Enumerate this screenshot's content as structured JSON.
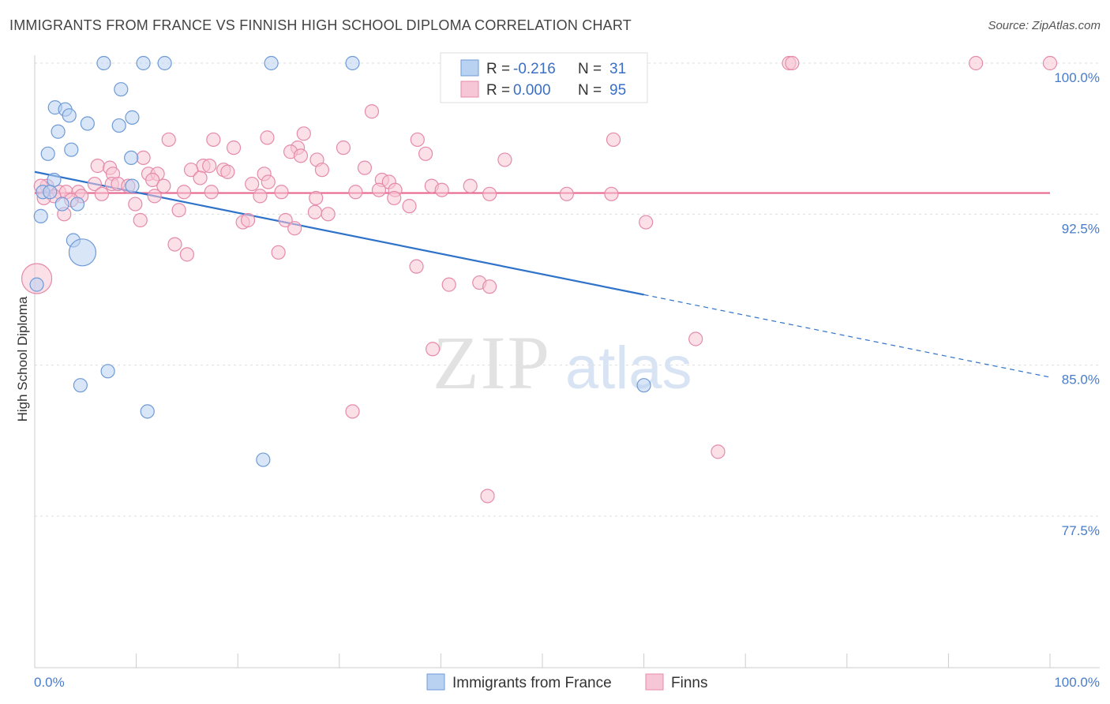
{
  "title": "IMMIGRANTS FROM FRANCE VS FINNISH HIGH SCHOOL DIPLOMA CORRELATION CHART",
  "source": "Source: ZipAtlas.com",
  "watermark": {
    "zip": "ZIP",
    "atlas": "atlas"
  },
  "colors": {
    "blue_fill": "#b9d2f2",
    "blue_stroke": "#6f9ad6",
    "blue_line": "#2f72c9",
    "pink_fill": "#f7c6d6",
    "pink_stroke": "#e58aaa",
    "pink_line": "#e8678f",
    "tick_text": "#4a7cc9",
    "grid": "#dddddd"
  },
  "legend_top": {
    "r_label": "R =",
    "n_label": "N =",
    "blue": {
      "r": "-0.216",
      "n": "31"
    },
    "pink": {
      "r": "0.000",
      "n": "95"
    }
  },
  "chart_data": {
    "type": "scatter",
    "title": "IMMIGRANTS FROM FRANCE VS FINNISH HIGH SCHOOL DIPLOMA CORRELATION CHART",
    "xlabel": "Immigrants from France",
    "ylabel": "High School Diploma",
    "xlim": [
      0,
      100
    ],
    "ylim": [
      70.0,
      100.8
    ],
    "yticks": [
      {
        "value": 100.0,
        "label": "100.0%"
      },
      {
        "value": 92.5,
        "label": "92.5%"
      },
      {
        "value": 85.0,
        "label": "85.0%"
      },
      {
        "value": 77.5,
        "label": "77.5%"
      }
    ],
    "xtick_labels": {
      "left": "0.0%",
      "right": "100.0%"
    },
    "series": [
      {
        "name": "Immigrants from France",
        "color": "blue",
        "r": -0.216,
        "n": 31,
        "trend": {
          "x0": 0.0,
          "y0": 94.6,
          "x1": 60.0,
          "y1": 88.5,
          "dash_to_x": 100.0,
          "dash_to_y": 84.4
        },
        "points": [
          [
            6.8,
            100.0
          ],
          [
            10.7,
            100.0
          ],
          [
            12.8,
            100.0
          ],
          [
            23.3,
            100.0
          ],
          [
            31.3,
            100.0
          ],
          [
            8.5,
            98.7
          ],
          [
            2.0,
            97.8
          ],
          [
            3.0,
            97.7
          ],
          [
            3.4,
            97.4
          ],
          [
            9.6,
            97.3
          ],
          [
            5.2,
            97.0
          ],
          [
            8.3,
            96.9
          ],
          [
            2.3,
            96.6
          ],
          [
            1.3,
            95.5
          ],
          [
            3.6,
            95.7
          ],
          [
            9.5,
            95.3
          ],
          [
            1.9,
            94.2
          ],
          [
            9.6,
            93.9
          ],
          [
            0.8,
            93.6
          ],
          [
            1.5,
            93.6
          ],
          [
            2.7,
            93.0
          ],
          [
            4.2,
            93.0
          ],
          [
            0.6,
            92.4
          ],
          [
            3.8,
            91.2
          ],
          [
            4.7,
            90.6
          ],
          [
            0.2,
            89.0
          ],
          [
            7.2,
            84.7
          ],
          [
            4.5,
            84.0
          ],
          [
            60.0,
            84.0
          ],
          [
            11.1,
            82.7
          ],
          [
            22.5,
            80.3
          ]
        ],
        "sizes": {
          "24": 34
        }
      },
      {
        "name": "Finns",
        "color": "pink",
        "r": 0.0,
        "n": 95,
        "trend": {
          "y": 93.55
        },
        "points": [
          [
            74.3,
            100.0
          ],
          [
            74.6,
            100.0
          ],
          [
            92.7,
            100.0
          ],
          [
            100.0,
            100.0
          ],
          [
            33.2,
            97.6
          ],
          [
            26.5,
            96.5
          ],
          [
            22.9,
            96.3
          ],
          [
            13.2,
            96.2
          ],
          [
            17.6,
            96.2
          ],
          [
            37.7,
            96.2
          ],
          [
            57.0,
            96.2
          ],
          [
            19.6,
            95.8
          ],
          [
            25.9,
            95.8
          ],
          [
            30.4,
            95.8
          ],
          [
            25.2,
            95.6
          ],
          [
            26.2,
            95.4
          ],
          [
            38.5,
            95.5
          ],
          [
            10.7,
            95.3
          ],
          [
            46.3,
            95.2
          ],
          [
            27.8,
            95.2
          ],
          [
            6.2,
            94.9
          ],
          [
            7.4,
            94.8
          ],
          [
            16.6,
            94.9
          ],
          [
            17.2,
            94.9
          ],
          [
            18.6,
            94.7
          ],
          [
            19.0,
            94.6
          ],
          [
            22.6,
            94.5
          ],
          [
            28.3,
            94.7
          ],
          [
            32.5,
            94.8
          ],
          [
            15.4,
            94.7
          ],
          [
            7.7,
            94.5
          ],
          [
            11.2,
            94.5
          ],
          [
            12.1,
            94.5
          ],
          [
            34.2,
            94.2
          ],
          [
            11.6,
            94.2
          ],
          [
            16.3,
            94.3
          ],
          [
            23.0,
            94.1
          ],
          [
            5.9,
            94.0
          ],
          [
            7.6,
            94.0
          ],
          [
            8.2,
            94.0
          ],
          [
            9.2,
            93.9
          ],
          [
            12.7,
            93.9
          ],
          [
            21.4,
            94.0
          ],
          [
            34.9,
            94.1
          ],
          [
            42.9,
            93.9
          ],
          [
            1.2,
            93.9
          ],
          [
            2.4,
            93.6
          ],
          [
            3.1,
            93.6
          ],
          [
            4.3,
            93.6
          ],
          [
            6.6,
            93.5
          ],
          [
            14.7,
            93.6
          ],
          [
            17.4,
            93.6
          ],
          [
            24.3,
            93.6
          ],
          [
            33.9,
            93.7
          ],
          [
            35.5,
            93.7
          ],
          [
            39.1,
            93.9
          ],
          [
            40.1,
            93.7
          ],
          [
            1.9,
            93.4
          ],
          [
            4.6,
            93.4
          ],
          [
            11.8,
            93.4
          ],
          [
            31.6,
            93.6
          ],
          [
            44.8,
            93.5
          ],
          [
            52.4,
            93.5
          ],
          [
            56.8,
            93.5
          ],
          [
            27.7,
            93.3
          ],
          [
            35.4,
            93.3
          ],
          [
            0.9,
            93.3
          ],
          [
            3.6,
            93.2
          ],
          [
            9.9,
            93.0
          ],
          [
            14.2,
            92.7
          ],
          [
            27.6,
            92.6
          ],
          [
            28.9,
            92.5
          ],
          [
            36.9,
            92.9
          ],
          [
            2.9,
            92.5
          ],
          [
            10.4,
            92.2
          ],
          [
            20.5,
            92.1
          ],
          [
            21.0,
            92.2
          ],
          [
            24.7,
            92.2
          ],
          [
            60.2,
            92.1
          ],
          [
            25.6,
            91.8
          ],
          [
            13.8,
            91.0
          ],
          [
            15.0,
            90.5
          ],
          [
            24.0,
            90.6
          ],
          [
            0.2,
            89.3
          ],
          [
            37.6,
            89.9
          ],
          [
            40.8,
            89.0
          ],
          [
            43.8,
            89.1
          ],
          [
            44.8,
            88.9
          ],
          [
            65.1,
            86.3
          ],
          [
            39.2,
            85.8
          ],
          [
            31.3,
            82.7
          ],
          [
            67.3,
            80.7
          ],
          [
            44.6,
            78.5
          ],
          [
            0.6,
            93.9
          ],
          [
            22.2,
            93.4
          ]
        ],
        "sizes": {
          "83": 38
        }
      }
    ]
  },
  "legend_bottom": [
    "Immigrants from France",
    "Finns"
  ]
}
